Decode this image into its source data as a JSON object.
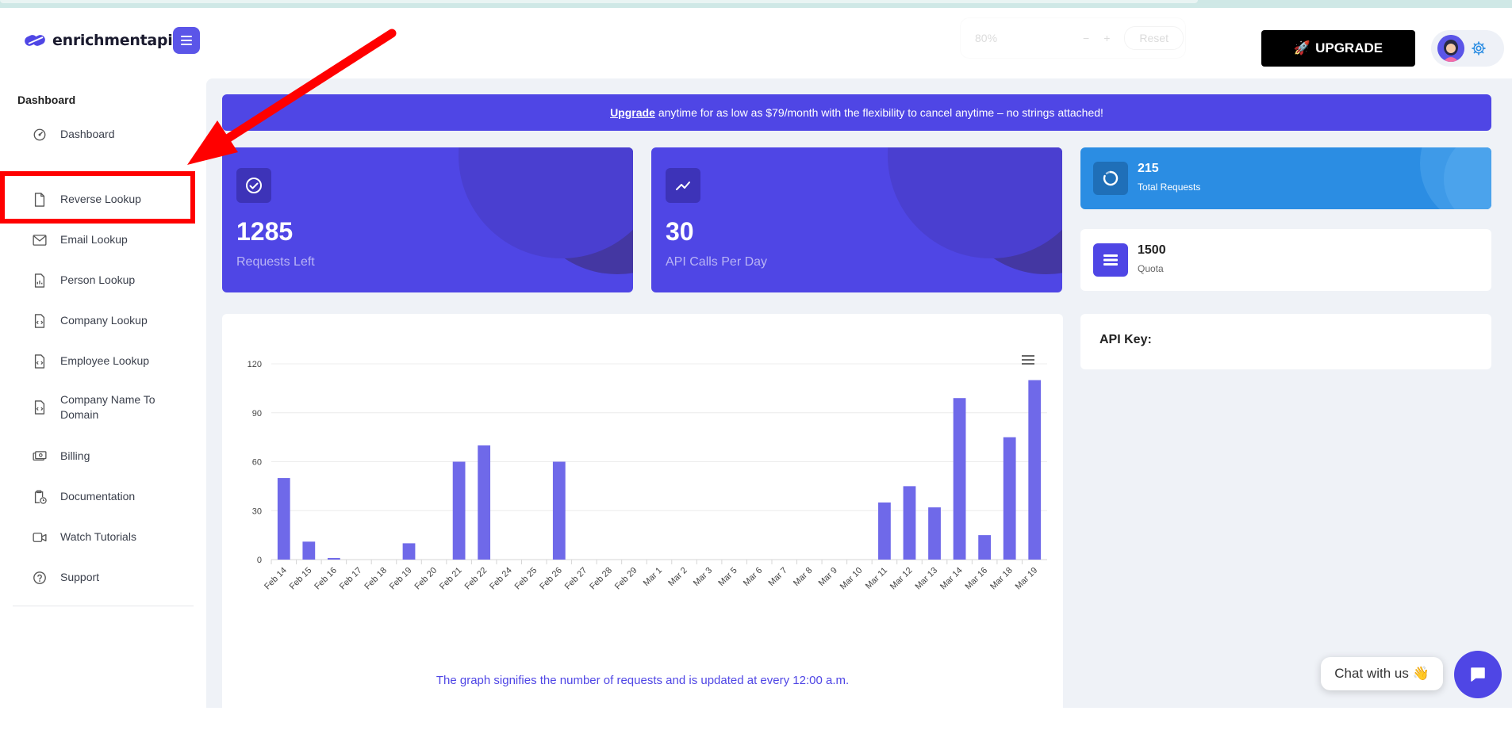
{
  "header": {
    "brand": "enrichmentapi",
    "zoom_text": "80%",
    "zoom_reset": "Reset",
    "upgrade_label": "UPGRADE",
    "upgrade_emoji": "🚀"
  },
  "sidebar": {
    "section_title": "Dashboard",
    "items": [
      {
        "label": "Dashboard",
        "icon": "gauge-icon"
      },
      {
        "label": "Reverse Lookup",
        "icon": "document-icon"
      },
      {
        "label": "Email Lookup",
        "icon": "envelope-icon"
      },
      {
        "label": "Person Lookup",
        "icon": "file-chart-icon"
      },
      {
        "label": "Company Lookup",
        "icon": "file-code-icon"
      },
      {
        "label": "Employee Lookup",
        "icon": "file-code-icon"
      },
      {
        "label": "Company Name To Domain",
        "icon": "file-code-icon"
      },
      {
        "label": "Billing",
        "icon": "cash-icon"
      },
      {
        "label": "Documentation",
        "icon": "clipboard-clock-icon"
      },
      {
        "label": "Watch Tutorials",
        "icon": "video-icon"
      },
      {
        "label": "Support",
        "icon": "help-circle-icon"
      }
    ]
  },
  "banner": {
    "link": "Upgrade",
    "text": "anytime for as low as $79/month with the flexibility to cancel anytime – no strings attached!"
  },
  "stats": [
    {
      "value": "1285",
      "caption": "Requests Left"
    },
    {
      "value": "30",
      "caption": "API Calls Per Day"
    }
  ],
  "minis": [
    {
      "value": "215",
      "caption": "Total Requests"
    },
    {
      "value": "1500",
      "caption": "Quota"
    }
  ],
  "api_key": {
    "label": "API Key:"
  },
  "chart_footnote": "The graph signifies the number of requests and is updated at every 12:00 a.m.",
  "chat": {
    "label": "Chat with us 👋"
  },
  "colors": {
    "primary": "#4f46e5",
    "bar": "#6f69e9",
    "annotation": "#ff0000",
    "info": "#2b8de3"
  },
  "chart_data": {
    "type": "bar",
    "categories": [
      "Feb 14",
      "Feb 15",
      "Feb 16",
      "Feb 17",
      "Feb 18",
      "Feb 19",
      "Feb 20",
      "Feb 21",
      "Feb 22",
      "Feb 24",
      "Feb 25",
      "Feb 26",
      "Feb 27",
      "Feb 28",
      "Feb 29",
      "Mar 1",
      "Mar 2",
      "Mar 3",
      "Mar 5",
      "Mar 6",
      "Mar 7",
      "Mar 8",
      "Mar 9",
      "Mar 10",
      "Mar 11",
      "Mar 12",
      "Mar 13",
      "Mar 14",
      "Mar 16",
      "Mar 18",
      "Mar 19"
    ],
    "values": [
      50,
      11,
      1,
      0,
      0,
      10,
      0,
      60,
      70,
      0,
      0,
      60,
      0,
      0,
      0,
      0,
      0,
      0,
      0,
      0,
      0,
      0,
      0,
      0,
      35,
      45,
      32,
      99,
      15,
      75,
      110
    ],
    "yticks": [
      0,
      30,
      60,
      90,
      120
    ],
    "ylim": [
      0,
      120
    ],
    "grid": true,
    "title": "",
    "xlabel": "",
    "ylabel": ""
  }
}
